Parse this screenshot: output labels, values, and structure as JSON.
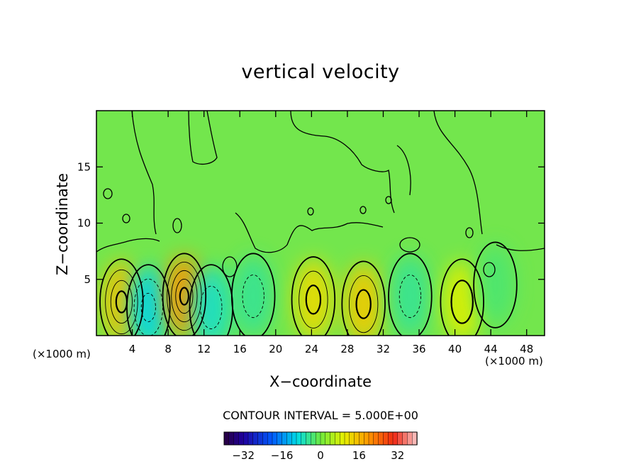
{
  "chart_data": {
    "type": "heatmap",
    "title": "vertical velocity",
    "xlabel": "X−coordinate",
    "ylabel": "Z−coordinate",
    "x_unit_label": "(×1000 m)",
    "xlim": [
      0,
      50
    ],
    "ylim": [
      0,
      20
    ],
    "x_ticks": [
      4,
      8,
      12,
      16,
      20,
      24,
      28,
      32,
      36,
      40,
      44,
      48
    ],
    "y_ticks": [
      5,
      10,
      15
    ],
    "contour_interval_label": "CONTOUR INTERVAL = 5.000E+00",
    "contour_interval": 5.0,
    "colorbar": {
      "range": [
        -40,
        40
      ],
      "ticks": [
        -32,
        -16,
        0,
        16,
        32
      ],
      "colormap": "rainbow"
    },
    "cells": [
      {
        "x": 2.8,
        "z": 3.0,
        "w": 15
      },
      {
        "x": 5.8,
        "z": 2.5,
        "w": -10
      },
      {
        "x": 9.8,
        "z": 3.5,
        "w": 20
      },
      {
        "x": 12.8,
        "z": 2.5,
        "w": -8
      },
      {
        "x": 17.5,
        "z": 3.5,
        "w": -5
      },
      {
        "x": 24.2,
        "z": 3.2,
        "w": 12
      },
      {
        "x": 29.8,
        "z": 2.8,
        "w": 14
      },
      {
        "x": 35.0,
        "z": 3.5,
        "w": -5
      },
      {
        "x": 40.8,
        "z": 3.0,
        "w": 9
      },
      {
        "x": 44.5,
        "z": 4.5,
        "w": -3
      }
    ],
    "grid": false,
    "legend": "colorbar-bottom"
  }
}
